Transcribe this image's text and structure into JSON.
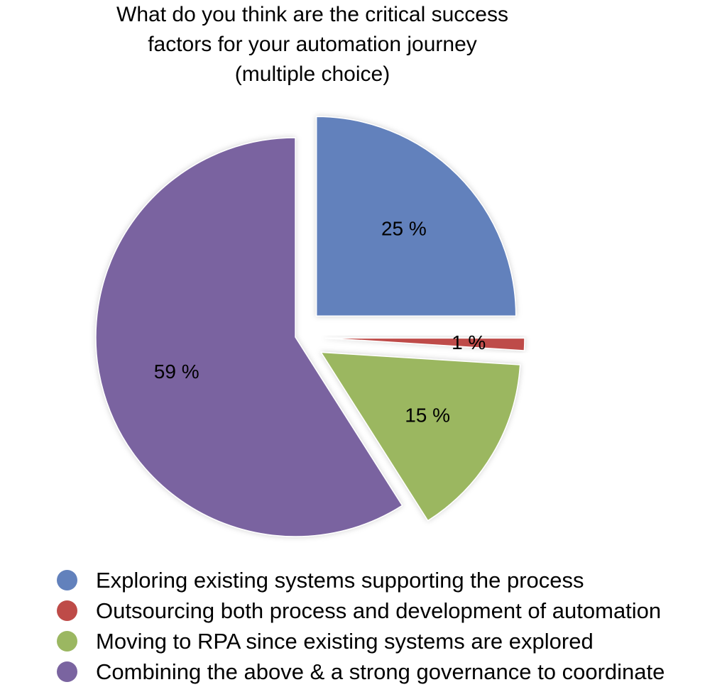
{
  "chart_data": {
    "type": "pie",
    "title": "What do you think are the critical success factors for your automation journey (multiple choice)",
    "title_lines": [
      "What do you think are the critical success",
      "factors for your automation journey",
      "(multiple choice)"
    ],
    "legend_position": "bottom",
    "slices": [
      {
        "name": "Exploring existing systems supporting the process",
        "value": 25,
        "label": "25 %",
        "color": "#6281BC",
        "exploded": true
      },
      {
        "name": "Outsourcing both process and development of automation",
        "value": 1,
        "label": "1 %",
        "color": "#BE4B48",
        "exploded": true
      },
      {
        "name": "Moving to RPA since existing systems are explored",
        "value": 15,
        "label": "15 %",
        "color": "#9BB761",
        "exploded": true
      },
      {
        "name": "Combining the above & a strong governance to coordinate",
        "value": 59,
        "label": "59 %",
        "color": "#7A64A0",
        "exploded": false
      }
    ]
  }
}
